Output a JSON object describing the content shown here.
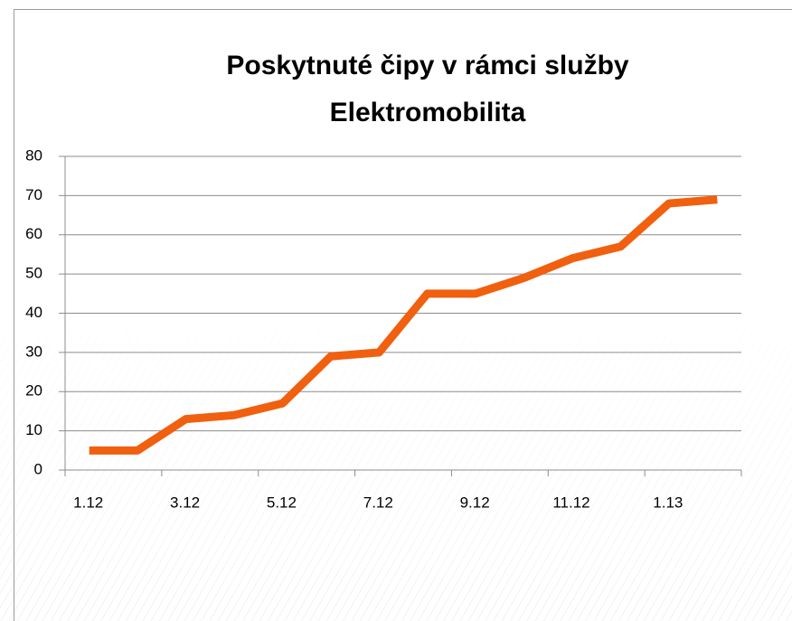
{
  "chart_data": {
    "type": "line",
    "title": [
      "Poskytnuté čipy v rámci služby",
      "Elektromobilita"
    ],
    "categories": [
      "1.12",
      null,
      "3.12",
      null,
      "5.12",
      null,
      "7.12",
      null,
      "9.12",
      null,
      "11.12",
      null,
      "1.13",
      null
    ],
    "series": [
      {
        "name": null,
        "color": "#f0600f",
        "values": [
          5,
          5,
          13,
          14,
          17,
          29,
          30,
          45,
          45,
          49,
          54,
          57,
          68,
          69
        ]
      }
    ],
    "ylim": [
      0,
      80
    ],
    "yticks": [
      0,
      10,
      20,
      30,
      40,
      50,
      60,
      70,
      80
    ],
    "grid": true
  }
}
